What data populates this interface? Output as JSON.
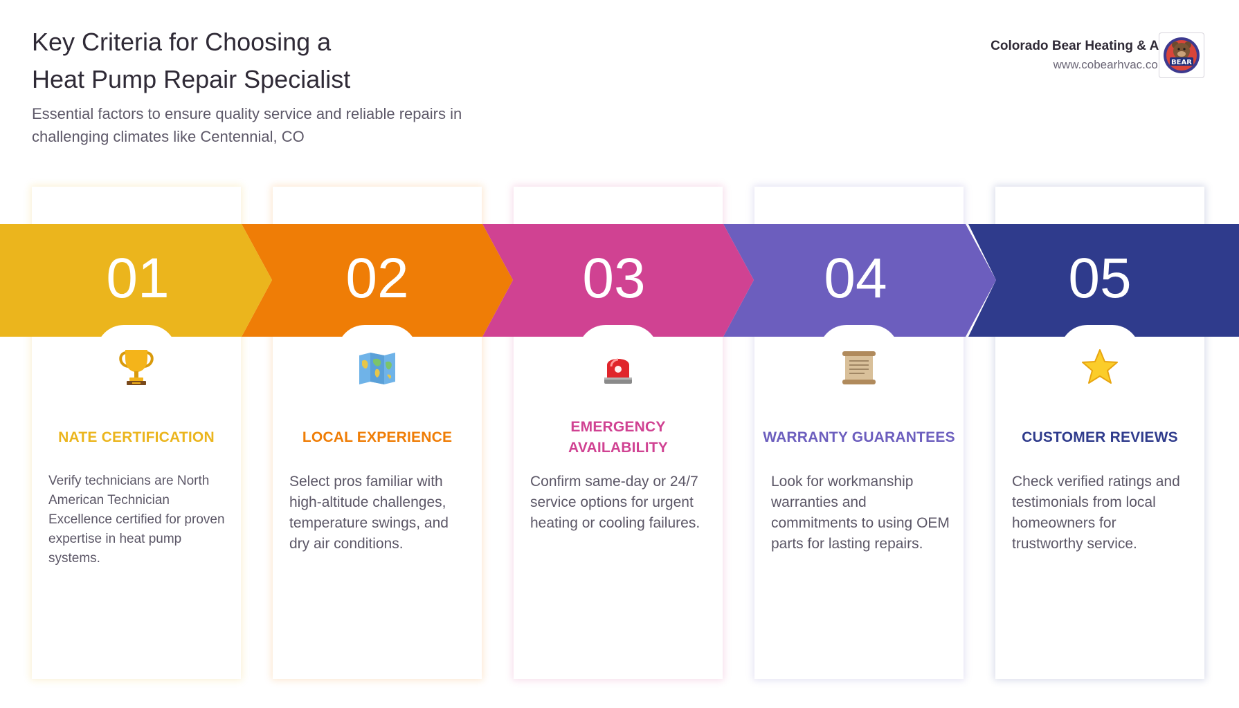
{
  "header": {
    "title_line1": "Key Criteria for Choosing a",
    "title_line2": "Heat Pump Repair Specialist",
    "subtitle_line1": "Essential factors to ensure quality service and reliable repairs in",
    "subtitle_line2": "challenging climates like Centennial, CO"
  },
  "brand": {
    "name": "Colorado Bear Heating & Air",
    "url": "www.cobearhvac.com",
    "logo_text": "BEAR"
  },
  "steps": [
    {
      "number": "01",
      "color": "#ebb51d",
      "icon": "trophy-icon",
      "title": "NATE CERTIFICATION",
      "description": "Verify technicians are North American Technician Excellence certified for proven expertise in heat pump systems."
    },
    {
      "number": "02",
      "color": "#ef7d06",
      "icon": "world-map-icon",
      "title": "LOCAL EXPERIENCE",
      "description": "Select pros familiar with high-altitude challenges, temperature swings, and dry air conditions."
    },
    {
      "number": "03",
      "color": "#d04292",
      "icon": "siren-light-icon",
      "title": "EMERGENCY AVAILABILITY",
      "description": "Confirm same-day or 24/7 service options for urgent heating or cooling failures."
    },
    {
      "number": "04",
      "color": "#6c5ebe",
      "icon": "scroll-icon",
      "title": "WARRANTY GUARANTEES",
      "description": "Look for workmanship warranties and commitments to using OEM parts for lasting repairs."
    },
    {
      "number": "05",
      "color": "#2f3b8c",
      "icon": "star-icon",
      "title": "CUSTOMER REVIEWS",
      "description": "Check verified ratings and testimonials from local homeowners for trustworthy service."
    }
  ]
}
